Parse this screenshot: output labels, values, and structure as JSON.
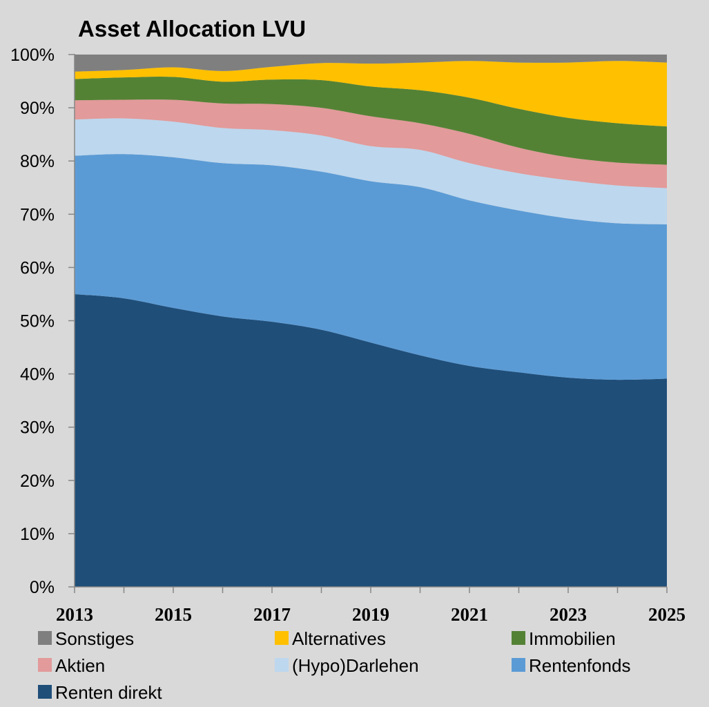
{
  "chart_data": {
    "type": "area",
    "stacked": true,
    "title": "Asset Allocation LVU",
    "x": [
      2013,
      2014,
      2015,
      2016,
      2017,
      2018,
      2019,
      2020,
      2021,
      2022,
      2023,
      2024,
      2025
    ],
    "x_tick_labels": [
      "2013",
      "2015",
      "2017",
      "2019",
      "2021",
      "2023",
      "2025"
    ],
    "y_tick_labels": [
      "0%",
      "10%",
      "20%",
      "30%",
      "40%",
      "50%",
      "60%",
      "70%",
      "80%",
      "90%",
      "100%"
    ],
    "ylim": [
      0,
      100
    ],
    "grid": false,
    "legend_position": "bottom",
    "series": [
      {
        "name": "Renten direkt",
        "color": "#1f4e79",
        "values": [
          55.0,
          54.2,
          52.4,
          50.8,
          49.8,
          48.3,
          45.9,
          43.5,
          41.5,
          40.3,
          39.3,
          38.9,
          39.1
        ]
      },
      {
        "name": "Rentenfonds",
        "color": "#5b9bd5",
        "values": [
          26.0,
          27.1,
          28.3,
          28.8,
          29.4,
          29.7,
          30.3,
          31.6,
          31.1,
          30.4,
          29.9,
          29.4,
          29.0
        ]
      },
      {
        "name": "(Hypo)Darlehen",
        "color": "#bdd7ee",
        "values": [
          6.8,
          6.7,
          6.7,
          6.6,
          6.6,
          6.8,
          6.6,
          7.0,
          7.0,
          7.0,
          7.2,
          7.1,
          6.8
        ]
      },
      {
        "name": "Aktien",
        "color": "#e29a9a",
        "values": [
          3.6,
          3.5,
          4.1,
          4.6,
          4.9,
          5.2,
          5.6,
          5.0,
          5.5,
          4.8,
          4.3,
          4.3,
          4.4
        ]
      },
      {
        "name": "Immobilien",
        "color": "#548235",
        "values": [
          4.0,
          4.2,
          4.3,
          4.1,
          4.6,
          5.2,
          5.6,
          6.2,
          6.8,
          7.3,
          7.4,
          7.4,
          7.2
        ]
      },
      {
        "name": "Alternatives",
        "color": "#ffc000",
        "values": [
          1.4,
          1.4,
          1.8,
          2.0,
          2.4,
          3.2,
          4.3,
          5.2,
          6.9,
          8.7,
          10.4,
          11.7,
          12.0
        ]
      },
      {
        "name": "Sonstiges",
        "color": "#7f7f7f",
        "values": [
          3.2,
          2.9,
          2.4,
          3.1,
          2.3,
          1.6,
          1.7,
          1.5,
          1.2,
          1.5,
          1.5,
          1.2,
          1.5
        ]
      }
    ],
    "legend_order": [
      "Sonstiges",
      "Alternatives",
      "Immobilien",
      "Aktien",
      "(Hypo)Darlehen",
      "Rentenfonds",
      "Renten direkt"
    ]
  }
}
